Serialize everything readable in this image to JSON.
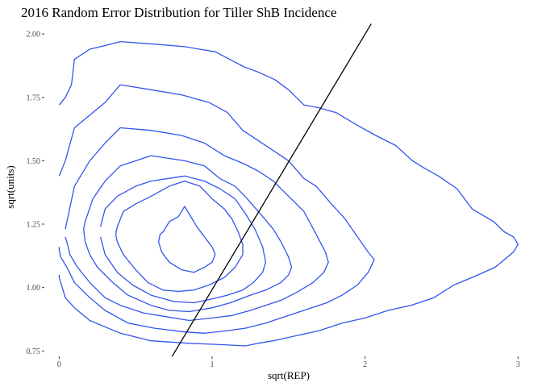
{
  "chart_data": {
    "type": "line",
    "title": "2016 Random Error Distribution for Tiller ShB Incidence",
    "xlabel": "sqrt(REP)",
    "ylabel": "sqrt(units)",
    "xlim": [
      -0.06,
      3.03
    ],
    "ylim": [
      0.735,
      2.045
    ],
    "x_ticks": [
      {
        "value": 0,
        "label": "0"
      },
      {
        "value": 1,
        "label": "1"
      },
      {
        "value": 2,
        "label": "2"
      },
      {
        "value": 3,
        "label": "3"
      }
    ],
    "y_ticks": [
      {
        "value": 0.75,
        "label": "0.75"
      },
      {
        "value": 1.0,
        "label": "1.00"
      },
      {
        "value": 1.25,
        "label": "1.25"
      },
      {
        "value": 1.5,
        "label": "1.50"
      },
      {
        "value": 1.75,
        "label": "1.75"
      },
      {
        "value": 2.0,
        "label": "2.00"
      }
    ],
    "grid": false,
    "legend": "none",
    "contour_color": "#3355ee",
    "line_color": "#000000",
    "reference_line": {
      "x": [
        0.72,
        2.04
      ],
      "y": [
        0.71,
        2.04
      ]
    },
    "contours": [
      {
        "x": [
          0,
          0.04,
          0.08,
          0.1,
          0.2,
          0.27,
          0.4,
          0.62,
          0.82,
          1.02,
          1.21,
          1.3,
          1.41,
          1.5,
          1.6,
          1.69,
          1.81,
          1.95,
          2.07,
          2.2,
          2.31,
          2.39,
          2.48,
          2.6,
          2.7,
          2.84,
          2.91,
          2.97,
          3,
          2.97,
          2.85,
          2.7,
          2.58,
          2.45,
          2.3,
          2.15,
          2.0,
          1.85,
          1.7,
          1.55,
          1.4,
          1.3,
          1.22,
          1.05,
          0.85,
          0.6,
          0.4,
          0.2,
          0.1,
          0.04,
          0.02,
          0,
          0
        ],
        "y": [
          1.72,
          1.75,
          1.8,
          1.9,
          1.94,
          1.95,
          1.97,
          1.96,
          1.95,
          1.93,
          1.87,
          1.85,
          1.82,
          1.78,
          1.72,
          1.71,
          1.69,
          1.64,
          1.6,
          1.56,
          1.5,
          1.47,
          1.44,
          1.39,
          1.31,
          1.26,
          1.22,
          1.2,
          1.17,
          1.14,
          1.08,
          1.04,
          1.01,
          0.96,
          0.93,
          0.91,
          0.88,
          0.86,
          0.83,
          0.81,
          0.79,
          0.78,
          0.77,
          0.775,
          0.78,
          0.79,
          0.82,
          0.87,
          0.92,
          0.96,
          1.0,
          1.04,
          1.05
        ]
      },
      {
        "x": [
          0,
          0.04,
          0.1,
          0.2,
          0.3,
          0.4,
          0.6,
          0.8,
          0.98,
          1.1,
          1.2,
          1.3,
          1.4,
          1.5,
          1.6,
          1.68,
          1.78,
          1.87,
          1.95,
          2.02,
          2.06,
          2.02,
          1.95,
          1.85,
          1.75,
          1.65,
          1.55,
          1.45,
          1.35,
          1.22,
          1.1,
          0.95,
          0.82,
          0.62,
          0.45,
          0.3,
          0.2,
          0.1,
          0.05,
          0.01,
          0,
          0
        ],
        "y": [
          1.44,
          1.5,
          1.63,
          1.68,
          1.73,
          1.8,
          1.78,
          1.76,
          1.73,
          1.69,
          1.62,
          1.58,
          1.54,
          1.5,
          1.43,
          1.4,
          1.33,
          1.27,
          1.2,
          1.14,
          1.11,
          1.06,
          1.01,
          0.97,
          0.94,
          0.92,
          0.9,
          0.88,
          0.86,
          0.84,
          0.83,
          0.82,
          0.825,
          0.84,
          0.86,
          0.91,
          0.96,
          1.02,
          1.08,
          1.12,
          1.15,
          1.16
        ]
      },
      {
        "x": [
          0.04,
          0.1,
          0.2,
          0.3,
          0.4,
          0.6,
          0.8,
          0.95,
          1.08,
          1.2,
          1.3,
          1.4,
          1.5,
          1.6,
          1.68,
          1.74,
          1.76,
          1.73,
          1.66,
          1.55,
          1.45,
          1.35,
          1.25,
          1.13,
          1.0,
          0.85,
          0.7,
          0.55,
          0.4,
          0.3,
          0.2,
          0.12,
          0.07,
          0.05,
          0.04
        ],
        "y": [
          1.23,
          1.4,
          1.5,
          1.57,
          1.63,
          1.62,
          1.6,
          1.57,
          1.52,
          1.49,
          1.46,
          1.42,
          1.36,
          1.3,
          1.21,
          1.14,
          1.1,
          1.06,
          1.02,
          0.98,
          0.95,
          0.93,
          0.91,
          0.89,
          0.88,
          0.87,
          0.885,
          0.9,
          0.93,
          0.96,
          1.02,
          1.08,
          1.13,
          1.18,
          1.2
        ]
      },
      {
        "x": [
          0.17,
          0.22,
          0.3,
          0.4,
          0.6,
          0.82,
          0.95,
          1.05,
          1.15,
          1.23,
          1.33,
          1.4,
          1.45,
          1.5,
          1.52,
          1.5,
          1.45,
          1.35,
          1.25,
          1.12,
          1.0,
          0.85,
          0.72,
          0.6,
          0.45,
          0.35,
          0.25,
          0.2,
          0.17,
          0.16,
          0.17
        ],
        "y": [
          1.26,
          1.35,
          1.42,
          1.48,
          1.52,
          1.5,
          1.48,
          1.43,
          1.4,
          1.35,
          1.28,
          1.23,
          1.18,
          1.12,
          1.08,
          1.05,
          1.02,
          0.99,
          0.97,
          0.94,
          0.92,
          0.905,
          0.91,
          0.93,
          0.97,
          1.02,
          1.08,
          1.13,
          1.18,
          1.23,
          1.26
        ]
      },
      {
        "x": [
          0.27,
          0.3,
          0.38,
          0.5,
          0.6,
          0.82,
          0.95,
          1.05,
          1.15,
          1.22,
          1.28,
          1.33,
          1.35,
          1.33,
          1.27,
          1.2,
          1.1,
          1.0,
          0.88,
          0.75,
          0.6,
          0.48,
          0.38,
          0.3,
          0.27
        ],
        "y": [
          1.24,
          1.31,
          1.36,
          1.4,
          1.42,
          1.44,
          1.42,
          1.39,
          1.35,
          1.29,
          1.23,
          1.16,
          1.1,
          1.06,
          1.02,
          0.99,
          0.97,
          0.955,
          0.94,
          0.945,
          0.97,
          1.01,
          1.06,
          1.13,
          1.2
        ]
      },
      {
        "x": [
          0.38,
          0.42,
          0.5,
          0.6,
          0.72,
          0.82,
          0.92,
          1.0,
          1.08,
          1.13,
          1.17,
          1.2,
          1.2,
          1.15,
          1.08,
          0.98,
          0.88,
          0.78,
          0.68,
          0.58,
          0.5,
          0.42,
          0.38,
          0.37,
          0.38
        ],
        "y": [
          1.24,
          1.3,
          1.33,
          1.36,
          1.4,
          1.42,
          1.4,
          1.35,
          1.31,
          1.27,
          1.22,
          1.17,
          1.13,
          1.08,
          1.04,
          1.01,
          0.99,
          0.985,
          0.99,
          1.02,
          1.07,
          1.13,
          1.18,
          1.21,
          1.24
        ]
      },
      {
        "x": [
          0.68,
          0.72,
          0.78,
          0.82,
          0.85,
          0.9,
          0.95,
          1.0,
          1.02,
          1.0,
          0.95,
          0.88,
          0.8,
          0.72,
          0.67,
          0.65,
          0.66,
          0.68
        ],
        "y": [
          1.22,
          1.26,
          1.28,
          1.32,
          1.29,
          1.24,
          1.2,
          1.16,
          1.13,
          1.1,
          1.08,
          1.06,
          1.07,
          1.1,
          1.14,
          1.18,
          1.21,
          1.22
        ]
      }
    ]
  }
}
